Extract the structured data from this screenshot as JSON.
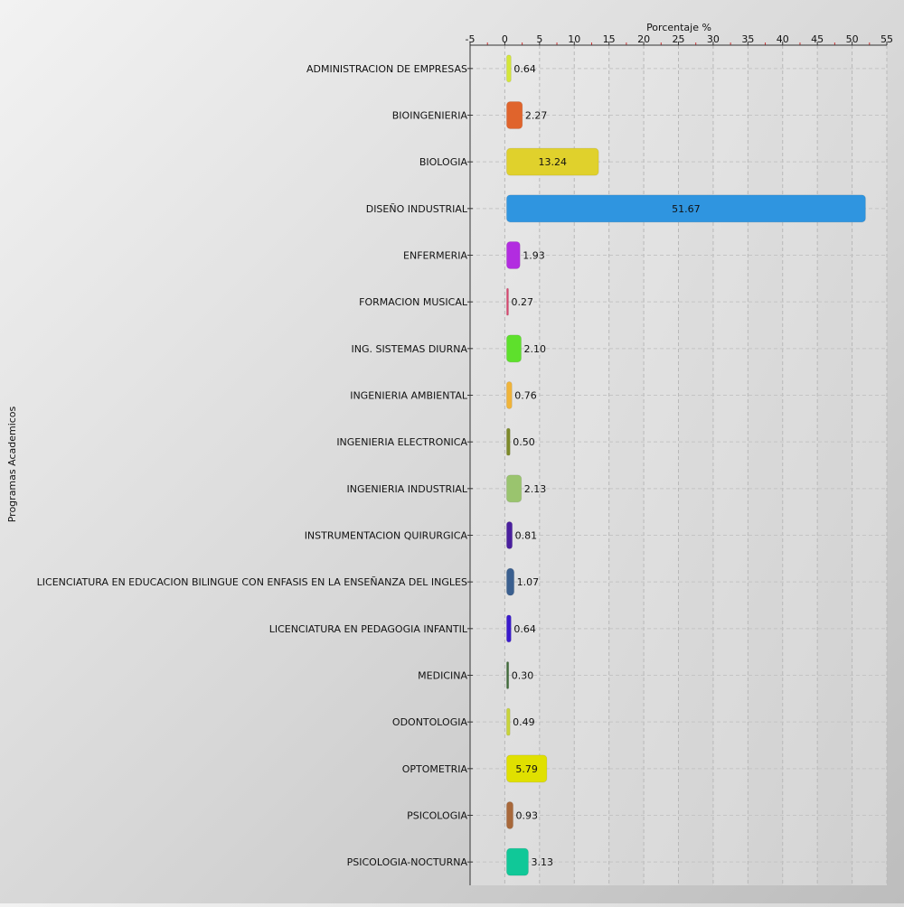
{
  "chart_data": {
    "type": "bar",
    "orientation": "horizontal",
    "xlabel": "Porcentaje %",
    "ylabel": "Programas Academicos",
    "xlim": [
      -5,
      55
    ],
    "xticks": [
      "-5",
      "0",
      "5",
      "10",
      "15",
      "20",
      "25",
      "30",
      "35",
      "40",
      "45",
      "50",
      "55"
    ],
    "x_axis_position": "top",
    "grid": true,
    "legend": "none",
    "categories": [
      "ADMINISTRACION DE EMPRESAS",
      "BIOINGENIERIA",
      "BIOLOGIA",
      "DISEÑO INDUSTRIAL",
      "ENFERMERIA",
      "FORMACION MUSICAL",
      "ING. SISTEMAS DIURNA",
      "INGENIERIA AMBIENTAL",
      "INGENIERIA ELECTRONICA",
      "INGENIERIA INDUSTRIAL",
      "INSTRUMENTACION QUIRURGICA",
      "LICENCIATURA EN EDUCACION BILINGUE CON ENFASIS EN LA ENSEÑANZA DEL INGLES",
      "LICENCIATURA EN PEDAGOGIA INFANTIL",
      "MEDICINA",
      "ODONTOLOGIA",
      "OPTOMETRIA",
      "PSICOLOGIA",
      "PSICOLOGIA-NOCTURNA"
    ],
    "values": [
      0.64,
      2.27,
      13.24,
      51.67,
      1.93,
      0.27,
      2.1,
      0.76,
      0.5,
      2.13,
      0.81,
      1.07,
      0.64,
      0.3,
      0.49,
      5.79,
      0.93,
      3.13
    ],
    "value_labels": [
      "0.64",
      "2.27",
      "13.24",
      "51.67",
      "1.93",
      "0.27",
      "2.10",
      "0.76",
      "0.50",
      "2.13",
      "0.81",
      "1.07",
      "0.64",
      "0.30",
      "0.49",
      "5.79",
      "0.93",
      "3.13"
    ],
    "colors": [
      "#d4e63a",
      "#e0642c",
      "#e0d12c",
      "#2f95e0",
      "#b22ce0",
      "#d9456e",
      "#5ee02c",
      "#f0b43a",
      "#7d8a2a",
      "#9ac46e",
      "#4a1f9e",
      "#3a5f8f",
      "#3a1acc",
      "#3f6b3a",
      "#c8d43a",
      "#e0e000",
      "#a8683a",
      "#10c898"
    ]
  }
}
